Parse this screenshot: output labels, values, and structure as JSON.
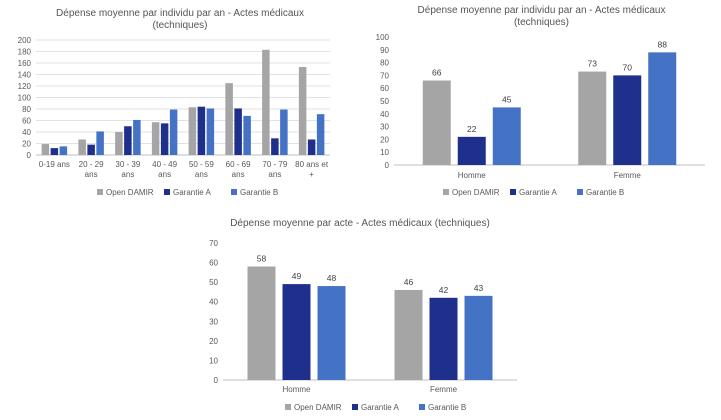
{
  "colors": {
    "Open DAMIR": "#a5a5a5",
    "Garantie A": "#1f2f8c",
    "Garantie B": "#4472c4",
    "gridline": "#d9d9d9",
    "axis": "#bfbfbf"
  },
  "chart_data": [
    {
      "type": "bar",
      "title_lines": [
        "Dépense moyenne par individu par an - Actes médicaux",
        "(techniques)"
      ],
      "categories": [
        [
          "0-19 ans"
        ],
        [
          "20 - 29",
          "ans"
        ],
        [
          "30 - 39",
          "ans"
        ],
        [
          "40 - 49",
          "ans"
        ],
        [
          "50 - 59",
          "ans"
        ],
        [
          "60 - 69",
          "ans"
        ],
        [
          "70 - 79",
          "ans"
        ],
        [
          "80 ans et",
          "+"
        ]
      ],
      "series": [
        {
          "name": "Open DAMIR",
          "values": [
            19,
            27,
            40,
            57,
            83,
            125,
            183,
            153
          ]
        },
        {
          "name": "Garantie A",
          "values": [
            12,
            18,
            50,
            55,
            84,
            81,
            29,
            27
          ]
        },
        {
          "name": "Garantie B",
          "values": [
            15,
            41,
            61,
            79,
            81,
            68,
            79,
            71
          ]
        }
      ],
      "ylim": [
        0,
        200
      ],
      "yticks": [
        0,
        20,
        40,
        60,
        80,
        100,
        120,
        140,
        160,
        180,
        200
      ],
      "grid": true,
      "data_labels": false,
      "legend": "bottom"
    },
    {
      "type": "bar",
      "title_lines": [
        "Dépense moyenne par individu par an - Actes médicaux",
        "(techniques)"
      ],
      "categories": [
        [
          "Homme"
        ],
        [
          "Femme"
        ]
      ],
      "series": [
        {
          "name": "Open DAMIR",
          "values": [
            66,
            73
          ]
        },
        {
          "name": "Garantie A",
          "values": [
            22,
            70
          ]
        },
        {
          "name": "Garantie B",
          "values": [
            45,
            88
          ]
        }
      ],
      "ylim": [
        0,
        100
      ],
      "yticks": [
        0,
        10,
        20,
        30,
        40,
        50,
        60,
        70,
        80,
        90,
        100
      ],
      "grid": false,
      "data_labels": true,
      "legend": "bottom"
    },
    {
      "type": "bar",
      "title_lines": [
        "Dépense moyenne par acte - Actes médicaux (techniques)"
      ],
      "categories": [
        [
          "Homme"
        ],
        [
          "Femme"
        ]
      ],
      "series": [
        {
          "name": "Open DAMIR",
          "values": [
            58,
            46
          ]
        },
        {
          "name": "Garantie A",
          "values": [
            49,
            42
          ]
        },
        {
          "name": "Garantie B",
          "values": [
            48,
            43
          ]
        }
      ],
      "ylim": [
        0,
        70
      ],
      "yticks": [
        0,
        10,
        20,
        30,
        40,
        50,
        60,
        70
      ],
      "grid": false,
      "data_labels": true,
      "legend": "bottom"
    }
  ]
}
